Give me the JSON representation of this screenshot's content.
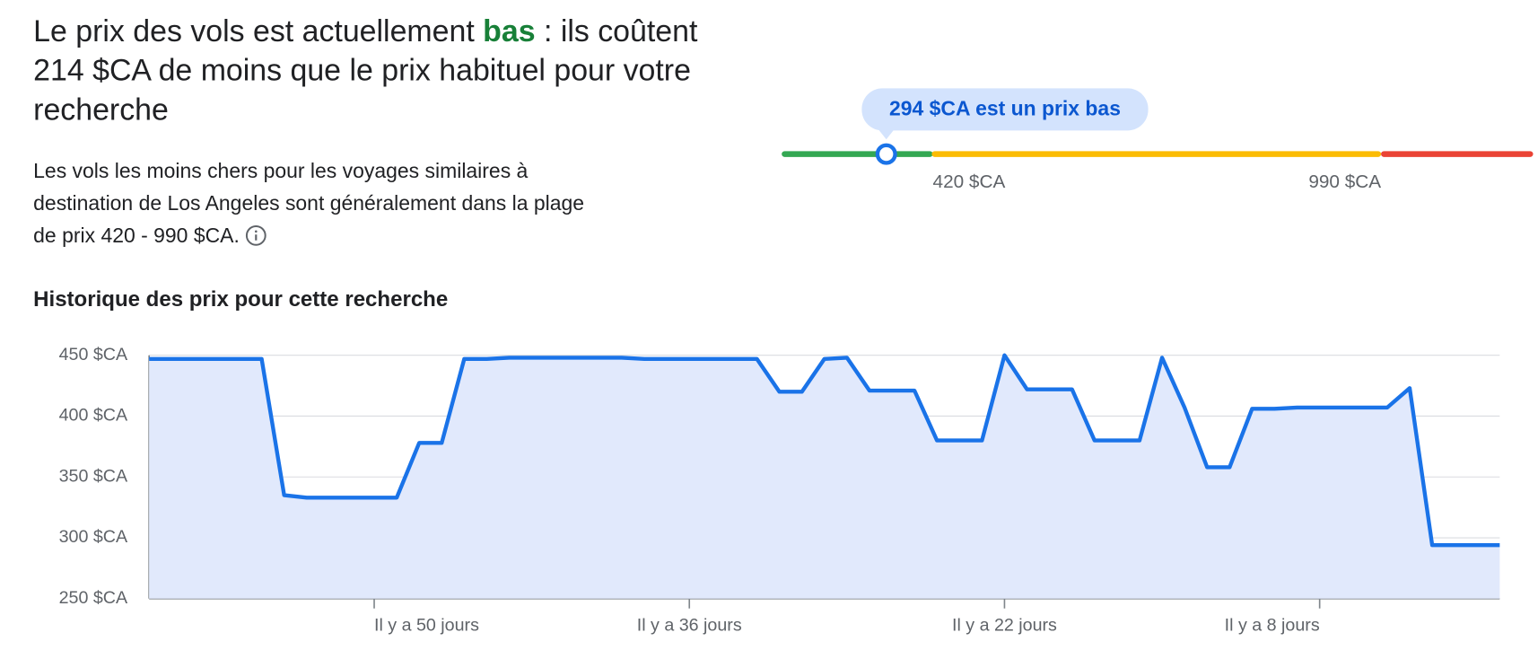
{
  "headline": {
    "before": "Le prix des vols est actuellement ",
    "highlight": "bas",
    "after": " : ils coûtent 214 $CA de moins que le prix habituel pour votre recherche"
  },
  "description": "Les vols les moins chers pour les voyages similaires à destination de Los Angeles sont généralement dans la plage de prix 420 - 990 $CA.",
  "price_gauge": {
    "tooltip": "294 $CA est un prix bas",
    "price": 294,
    "thresholds": [
      {
        "value": 420,
        "label": "420 $CA"
      },
      {
        "value": 990,
        "label": "990 $CA"
      }
    ],
    "colors": [
      "#34a853",
      "#fbbc04",
      "#ea4335"
    ],
    "marker_color": "#1a73e8"
  },
  "chart_data": {
    "type": "line",
    "title": "Historique des prix pour cette recherche",
    "x": [
      60,
      55,
      54,
      53,
      49,
      48,
      47,
      46,
      45,
      44,
      39,
      38,
      33,
      32,
      31,
      30,
      29,
      28,
      26,
      25,
      23,
      22,
      21,
      19,
      18,
      16,
      15,
      14,
      13,
      12,
      11,
      10,
      9,
      5,
      4,
      3,
      0
    ],
    "values": [
      447,
      447,
      335,
      333,
      333,
      378,
      378,
      447,
      447,
      448,
      448,
      447,
      447,
      420,
      420,
      447,
      448,
      421,
      421,
      380,
      380,
      450,
      422,
      422,
      380,
      380,
      448,
      407,
      358,
      358,
      406,
      406,
      407,
      407,
      423,
      294,
      294
    ],
    "color": "#1a73e8",
    "area_color": "#e1e9fc",
    "xlim": [
      60,
      0
    ],
    "xticks": [
      {
        "value": 50,
        "label": "Il y a 50 jours"
      },
      {
        "value": 36,
        "label": "Il y a 36 jours"
      },
      {
        "value": 22,
        "label": "Il y a 22 jours"
      },
      {
        "value": 8,
        "label": "Il y a 8 jours"
      }
    ],
    "ylim": [
      250,
      450
    ],
    "yticks": [
      {
        "value": 250,
        "label": "250 $CA"
      },
      {
        "value": 300,
        "label": "300 $CA"
      },
      {
        "value": 350,
        "label": "350 $CA"
      },
      {
        "value": 400,
        "label": "400 $CA"
      },
      {
        "value": 450,
        "label": "450 $CA"
      }
    ],
    "grid": true
  }
}
